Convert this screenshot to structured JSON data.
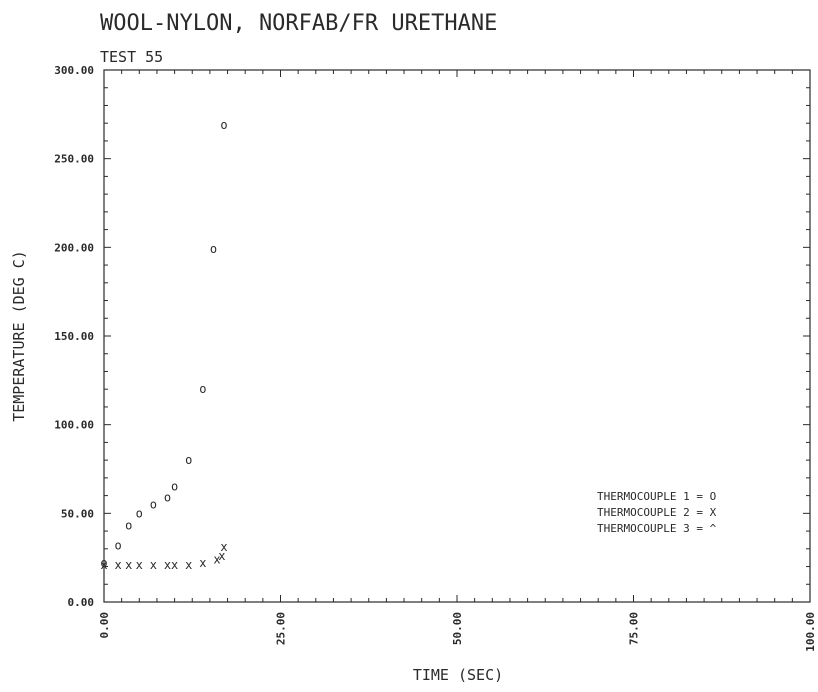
{
  "chart_data": {
    "type": "scatter",
    "title": "WOOL-NYLON, NORFAB/FR URETHANE",
    "subtitle": "TEST 55",
    "xlabel": "TIME (SEC)",
    "ylabel": "TEMPERATURE (DEG C)",
    "xlim": [
      0,
      100
    ],
    "ylim": [
      0,
      300
    ],
    "x_ticks": [
      "0.00",
      "25.00",
      "50.00",
      "75.00",
      "100.00"
    ],
    "y_ticks": [
      "0.00",
      "50.00",
      "100.00",
      "150.00",
      "200.00",
      "250.00",
      "300.00"
    ],
    "grid": false,
    "legend_position": "lower-right",
    "series": [
      {
        "name": "THERMOCOUPLE 1",
        "marker": "O",
        "x": [
          0,
          2,
          3.5,
          5,
          7,
          9,
          10,
          12,
          14,
          15.5,
          17
        ],
        "y": [
          22,
          32,
          43,
          50,
          55,
          59,
          65,
          80,
          120,
          199,
          269
        ]
      },
      {
        "name": "THERMOCOUPLE 2",
        "marker": "X",
        "x": [
          0,
          2,
          3.5,
          5,
          7,
          9,
          10,
          12,
          14,
          16,
          16.7,
          17
        ],
        "y": [
          21,
          21,
          21,
          21,
          21,
          21,
          21,
          21,
          22,
          24,
          26,
          31
        ]
      },
      {
        "name": "THERMOCOUPLE 3",
        "marker": "^",
        "x": [],
        "y": []
      }
    ]
  }
}
